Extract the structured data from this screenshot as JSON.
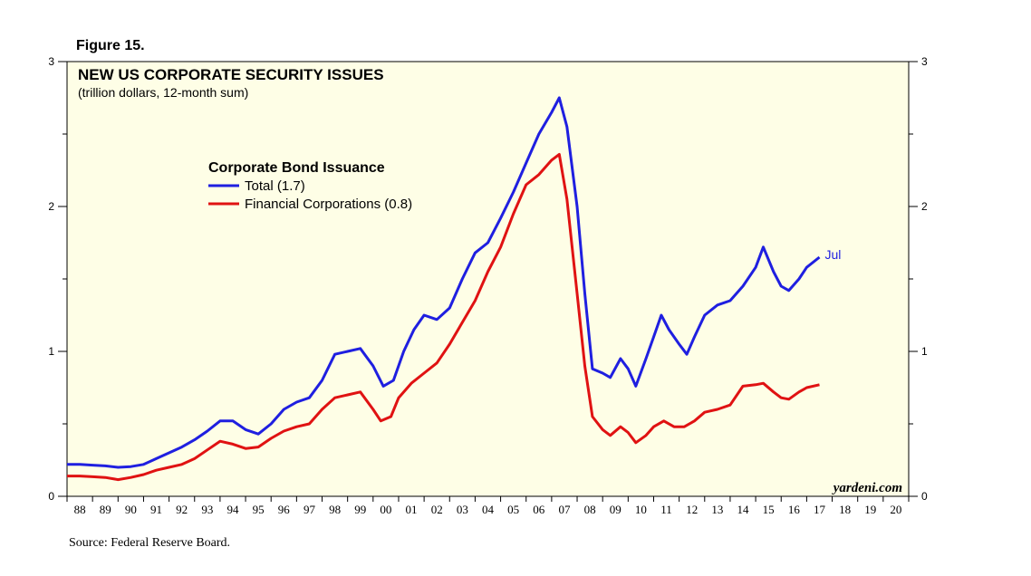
{
  "figure_label": "Figure 15.",
  "source": "Source: Federal Reserve Board.",
  "colors": {
    "panel_bg": "#fefee6",
    "total": "#1f1fe0",
    "financial": "#e01212",
    "text": "#000000"
  },
  "chart_data": {
    "type": "line",
    "title": "NEW US CORPORATE SECURITY ISSUES",
    "subtitle": "(trillion dollars, 12-month sum)",
    "legend_title": "Corporate Bond Issuance",
    "watermark": "yardeni.com",
    "end_label": "Jul",
    "ylim": [
      0,
      3
    ],
    "y_ticks": [
      0,
      1,
      2,
      3
    ],
    "x_range": [
      1988,
      2021
    ],
    "x_tick_labels": [
      "88",
      "89",
      "90",
      "91",
      "92",
      "93",
      "94",
      "95",
      "96",
      "97",
      "98",
      "99",
      "00",
      "01",
      "02",
      "03",
      "04",
      "05",
      "06",
      "07",
      "08",
      "09",
      "10",
      "11",
      "12",
      "13",
      "14",
      "15",
      "16",
      "17",
      "18",
      "19",
      "20"
    ],
    "series": [
      {
        "name": "Total",
        "legend": "Total (1.7)",
        "color": "#1f1fe0",
        "points": [
          [
            1988.0,
            0.22
          ],
          [
            1988.5,
            0.22
          ],
          [
            1989.0,
            0.215
          ],
          [
            1989.5,
            0.21
          ],
          [
            1990.0,
            0.2
          ],
          [
            1990.5,
            0.205
          ],
          [
            1991.0,
            0.22
          ],
          [
            1991.5,
            0.26
          ],
          [
            1992.0,
            0.3
          ],
          [
            1992.5,
            0.34
          ],
          [
            1993.0,
            0.39
          ],
          [
            1993.5,
            0.45
          ],
          [
            1994.0,
            0.52
          ],
          [
            1994.5,
            0.52
          ],
          [
            1995.0,
            0.46
          ],
          [
            1995.5,
            0.43
          ],
          [
            1996.0,
            0.5
          ],
          [
            1996.5,
            0.6
          ],
          [
            1997.0,
            0.65
          ],
          [
            1997.5,
            0.68
          ],
          [
            1998.0,
            0.8
          ],
          [
            1998.5,
            0.98
          ],
          [
            1999.0,
            1.0
          ],
          [
            1999.5,
            1.02
          ],
          [
            2000.0,
            0.9
          ],
          [
            2000.4,
            0.76
          ],
          [
            2000.8,
            0.8
          ],
          [
            2001.2,
            1.0
          ],
          [
            2001.6,
            1.15
          ],
          [
            2002.0,
            1.25
          ],
          [
            2002.5,
            1.22
          ],
          [
            2003.0,
            1.3
          ],
          [
            2003.5,
            1.5
          ],
          [
            2004.0,
            1.68
          ],
          [
            2004.5,
            1.75
          ],
          [
            2005.0,
            1.92
          ],
          [
            2005.5,
            2.1
          ],
          [
            2006.0,
            2.3
          ],
          [
            2006.5,
            2.5
          ],
          [
            2007.0,
            2.65
          ],
          [
            2007.3,
            2.75
          ],
          [
            2007.6,
            2.55
          ],
          [
            2008.0,
            2.0
          ],
          [
            2008.3,
            1.4
          ],
          [
            2008.6,
            0.88
          ],
          [
            2009.0,
            0.85
          ],
          [
            2009.3,
            0.82
          ],
          [
            2009.7,
            0.95
          ],
          [
            2010.0,
            0.88
          ],
          [
            2010.3,
            0.76
          ],
          [
            2010.7,
            0.95
          ],
          [
            2011.0,
            1.1
          ],
          [
            2011.3,
            1.25
          ],
          [
            2011.6,
            1.15
          ],
          [
            2012.0,
            1.05
          ],
          [
            2012.3,
            0.98
          ],
          [
            2012.6,
            1.1
          ],
          [
            2013.0,
            1.25
          ],
          [
            2013.5,
            1.32
          ],
          [
            2014.0,
            1.35
          ],
          [
            2014.5,
            1.45
          ],
          [
            2015.0,
            1.58
          ],
          [
            2015.3,
            1.72
          ],
          [
            2015.7,
            1.55
          ],
          [
            2016.0,
            1.45
          ],
          [
            2016.3,
            1.42
          ],
          [
            2016.7,
            1.5
          ],
          [
            2017.0,
            1.58
          ],
          [
            2017.5,
            1.65
          ]
        ]
      },
      {
        "name": "Financial Corporations",
        "legend": "Financial Corporations (0.8)",
        "color": "#e01212",
        "points": [
          [
            1988.0,
            0.14
          ],
          [
            1988.5,
            0.14
          ],
          [
            1989.0,
            0.135
          ],
          [
            1989.5,
            0.13
          ],
          [
            1990.0,
            0.115
          ],
          [
            1990.5,
            0.13
          ],
          [
            1991.0,
            0.15
          ],
          [
            1991.5,
            0.18
          ],
          [
            1992.0,
            0.2
          ],
          [
            1992.5,
            0.22
          ],
          [
            1993.0,
            0.26
          ],
          [
            1993.5,
            0.32
          ],
          [
            1994.0,
            0.38
          ],
          [
            1994.5,
            0.36
          ],
          [
            1995.0,
            0.33
          ],
          [
            1995.5,
            0.34
          ],
          [
            1996.0,
            0.4
          ],
          [
            1996.5,
            0.45
          ],
          [
            1997.0,
            0.48
          ],
          [
            1997.5,
            0.5
          ],
          [
            1998.0,
            0.6
          ],
          [
            1998.5,
            0.68
          ],
          [
            1999.0,
            0.7
          ],
          [
            1999.5,
            0.72
          ],
          [
            2000.0,
            0.6
          ],
          [
            2000.3,
            0.52
          ],
          [
            2000.7,
            0.55
          ],
          [
            2001.0,
            0.68
          ],
          [
            2001.5,
            0.78
          ],
          [
            2002.0,
            0.85
          ],
          [
            2002.5,
            0.92
          ],
          [
            2003.0,
            1.05
          ],
          [
            2003.5,
            1.2
          ],
          [
            2004.0,
            1.35
          ],
          [
            2004.5,
            1.55
          ],
          [
            2005.0,
            1.72
          ],
          [
            2005.5,
            1.95
          ],
          [
            2006.0,
            2.15
          ],
          [
            2006.5,
            2.22
          ],
          [
            2007.0,
            2.32
          ],
          [
            2007.3,
            2.36
          ],
          [
            2007.6,
            2.05
          ],
          [
            2008.0,
            1.4
          ],
          [
            2008.3,
            0.9
          ],
          [
            2008.6,
            0.55
          ],
          [
            2009.0,
            0.46
          ],
          [
            2009.3,
            0.42
          ],
          [
            2009.7,
            0.48
          ],
          [
            2010.0,
            0.44
          ],
          [
            2010.3,
            0.37
          ],
          [
            2010.7,
            0.42
          ],
          [
            2011.0,
            0.48
          ],
          [
            2011.4,
            0.52
          ],
          [
            2011.8,
            0.48
          ],
          [
            2012.2,
            0.48
          ],
          [
            2012.6,
            0.52
          ],
          [
            2013.0,
            0.58
          ],
          [
            2013.5,
            0.6
          ],
          [
            2014.0,
            0.63
          ],
          [
            2014.5,
            0.76
          ],
          [
            2015.0,
            0.77
          ],
          [
            2015.3,
            0.78
          ],
          [
            2015.7,
            0.72
          ],
          [
            2016.0,
            0.68
          ],
          [
            2016.3,
            0.67
          ],
          [
            2016.7,
            0.72
          ],
          [
            2017.0,
            0.75
          ],
          [
            2017.5,
            0.77
          ]
        ]
      }
    ]
  }
}
